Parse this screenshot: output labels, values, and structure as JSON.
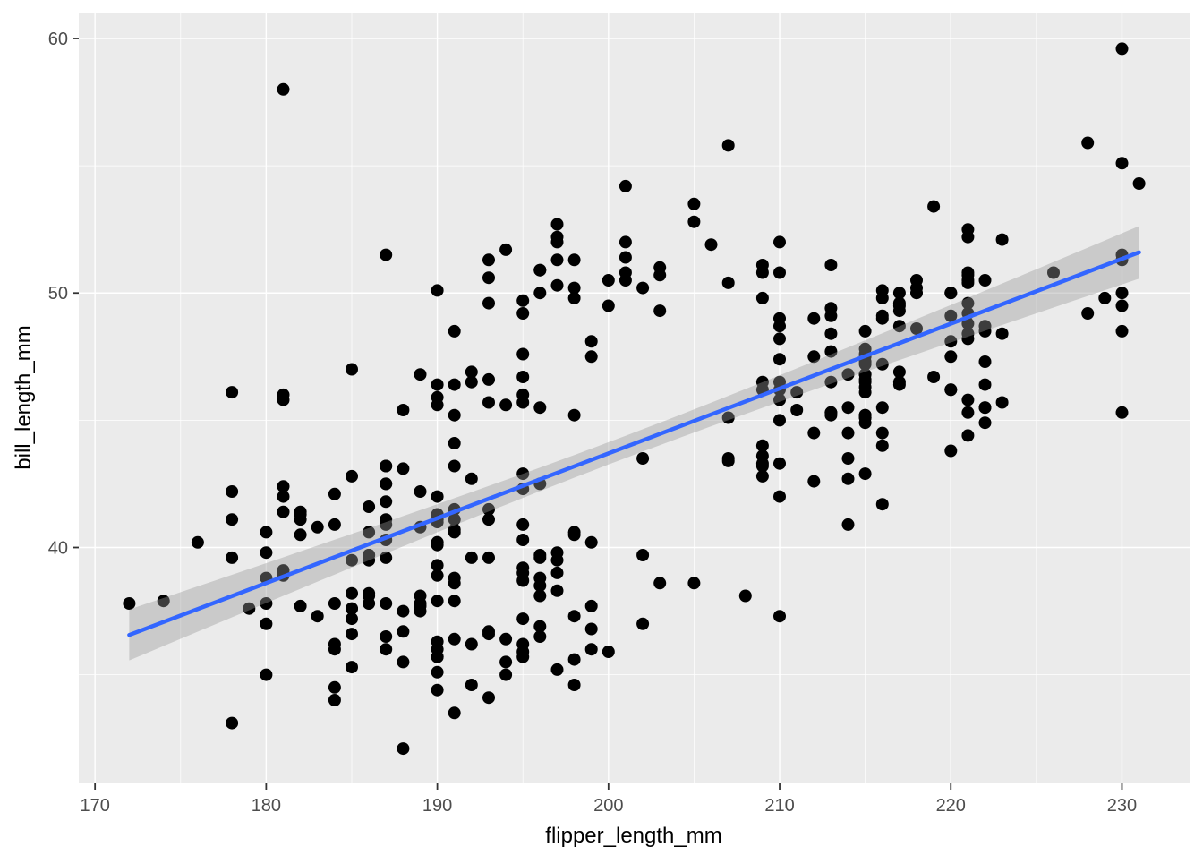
{
  "chart_data": {
    "type": "scatter",
    "title": "",
    "xlabel": "flipper_length_mm",
    "ylabel": "bill_length_mm",
    "legend": "none",
    "x_major_ticks": [
      170,
      180,
      190,
      200,
      210,
      220,
      230
    ],
    "x_minor_ticks": [
      175,
      185,
      195,
      205,
      215,
      225
    ],
    "y_major_ticks": [
      40,
      50,
      60
    ],
    "y_minor_ticks": [
      35,
      45,
      55
    ],
    "xlim": [
      169.05,
      233.95
    ],
    "ylim": [
      30.73,
      61.02
    ],
    "grid": {
      "major": true,
      "minor": true
    },
    "style": {
      "panel_bg": "#EBEBEB",
      "grid_color": "#FFFFFF",
      "point_color": "#000000",
      "line_color": "#3366FF",
      "ribbon_color": "#999999",
      "ribbon_alpha": 0.4,
      "tick_color": "#333333",
      "tick_label_color": "#4D4D4D",
      "axis_title_color": "#000000"
    },
    "smooth": {
      "method": "lm",
      "x_start": 172,
      "x_end": 231,
      "slope": 0.2548,
      "intercept": -7.262,
      "ci": {
        "mult": 8.077,
        "inv_n": 0.002924,
        "x_mean": 200.9,
        "sxx": 67415
      }
    },
    "points": [
      [
        181,
        39.1
      ],
      [
        186,
        39.5
      ],
      [
        195,
        40.3
      ],
      [
        193,
        36.7
      ],
      [
        190,
        39.3
      ],
      [
        181,
        38.9
      ],
      [
        195,
        39.2
      ],
      [
        193,
        34.1
      ],
      [
        190,
        42.0
      ],
      [
        186,
        37.8
      ],
      [
        180,
        37.8
      ],
      [
        182,
        41.1
      ],
      [
        191,
        38.6
      ],
      [
        198,
        34.6
      ],
      [
        185,
        36.6
      ],
      [
        195,
        38.7
      ],
      [
        196,
        42.5
      ],
      [
        190,
        34.4
      ],
      [
        181,
        46.0
      ],
      [
        184,
        37.8
      ],
      [
        182,
        37.7
      ],
      [
        195,
        35.9
      ],
      [
        186,
        38.2
      ],
      [
        196,
        38.8
      ],
      [
        185,
        35.3
      ],
      [
        180,
        40.6
      ],
      [
        182,
        40.5
      ],
      [
        191,
        37.9
      ],
      [
        198,
        40.5
      ],
      [
        185,
        39.5
      ],
      [
        195,
        37.2
      ],
      [
        197,
        39.5
      ],
      [
        184,
        40.9
      ],
      [
        194,
        36.4
      ],
      [
        174,
        37.9
      ],
      [
        180,
        38.8
      ],
      [
        189,
        42.2
      ],
      [
        185,
        37.6
      ],
      [
        180,
        39.8
      ],
      [
        187,
        36.5
      ],
      [
        183,
        40.8
      ],
      [
        187,
        36.0
      ],
      [
        172,
        37.8
      ],
      [
        180,
        37.0
      ],
      [
        178,
        39.6
      ],
      [
        178,
        41.1
      ],
      [
        188,
        37.5
      ],
      [
        184,
        36.0
      ],
      [
        195,
        42.3
      ],
      [
        196,
        39.6
      ],
      [
        190,
        40.1
      ],
      [
        180,
        35.0
      ],
      [
        181,
        42.0
      ],
      [
        184,
        34.5
      ],
      [
        182,
        41.4
      ],
      [
        195,
        39.0
      ],
      [
        186,
        40.6
      ],
      [
        196,
        36.5
      ],
      [
        185,
        37.6
      ],
      [
        190,
        35.7
      ],
      [
        182,
        41.3
      ],
      [
        179,
        37.6
      ],
      [
        190,
        41.1
      ],
      [
        191,
        36.4
      ],
      [
        186,
        41.6
      ],
      [
        188,
        35.5
      ],
      [
        190,
        41.1
      ],
      [
        200,
        35.9
      ],
      [
        187,
        41.8
      ],
      [
        191,
        33.5
      ],
      [
        186,
        39.7
      ],
      [
        193,
        39.6
      ],
      [
        181,
        45.8
      ],
      [
        194,
        35.5
      ],
      [
        185,
        42.8
      ],
      [
        195,
        40.9
      ],
      [
        185,
        37.2
      ],
      [
        192,
        36.2
      ],
      [
        184,
        42.1
      ],
      [
        192,
        34.6
      ],
      [
        195,
        42.9
      ],
      [
        188,
        36.7
      ],
      [
        190,
        35.1
      ],
      [
        198,
        37.3
      ],
      [
        190,
        41.3
      ],
      [
        190,
        36.3
      ],
      [
        196,
        36.9
      ],
      [
        197,
        38.3
      ],
      [
        190,
        38.9
      ],
      [
        195,
        35.7
      ],
      [
        191,
        41.1
      ],
      [
        184,
        34.0
      ],
      [
        187,
        39.6
      ],
      [
        195,
        36.2
      ],
      [
        189,
        40.8
      ],
      [
        196,
        38.1
      ],
      [
        187,
        40.3
      ],
      [
        178,
        33.1
      ],
      [
        191,
        43.2
      ],
      [
        194,
        35.0
      ],
      [
        190,
        41.0
      ],
      [
        189,
        37.7
      ],
      [
        189,
        37.8
      ],
      [
        190,
        37.9
      ],
      [
        202,
        39.7
      ],
      [
        205,
        38.6
      ],
      [
        185,
        38.2
      ],
      [
        186,
        38.1
      ],
      [
        187,
        43.2
      ],
      [
        208,
        38.1
      ],
      [
        190,
        45.6
      ],
      [
        196,
        39.7
      ],
      [
        178,
        42.2
      ],
      [
        192,
        39.6
      ],
      [
        192,
        42.7
      ],
      [
        203,
        38.6
      ],
      [
        183,
        37.3
      ],
      [
        190,
        35.7
      ],
      [
        193,
        41.1
      ],
      [
        184,
        36.2
      ],
      [
        199,
        37.7
      ],
      [
        190,
        40.2
      ],
      [
        181,
        41.4
      ],
      [
        197,
        35.2
      ],
      [
        198,
        40.6
      ],
      [
        191,
        38.8
      ],
      [
        193,
        41.5
      ],
      [
        197,
        39.0
      ],
      [
        191,
        44.1
      ],
      [
        196,
        38.5
      ],
      [
        188,
        43.1
      ],
      [
        199,
        36.8
      ],
      [
        189,
        37.5
      ],
      [
        189,
        38.1
      ],
      [
        187,
        41.1
      ],
      [
        198,
        35.6
      ],
      [
        176,
        40.2
      ],
      [
        202,
        37.0
      ],
      [
        186,
        39.7
      ],
      [
        199,
        40.2
      ],
      [
        191,
        40.6
      ],
      [
        188,
        32.1
      ],
      [
        191,
        40.7
      ],
      [
        210,
        37.3
      ],
      [
        190,
        40.2
      ],
      [
        197,
        39.8
      ],
      [
        193,
        36.6
      ],
      [
        199,
        36.0
      ],
      [
        187,
        37.8
      ],
      [
        190,
        36.0
      ],
      [
        191,
        41.5
      ],
      [
        192,
        46.5
      ],
      [
        196,
        50.0
      ],
      [
        193,
        51.3
      ],
      [
        188,
        45.4
      ],
      [
        197,
        52.7
      ],
      [
        198,
        45.2
      ],
      [
        178,
        46.1
      ],
      [
        197,
        51.3
      ],
      [
        195,
        46.0
      ],
      [
        198,
        51.3
      ],
      [
        193,
        46.6
      ],
      [
        194,
        51.7
      ],
      [
        185,
        47.0
      ],
      [
        201,
        52.0
      ],
      [
        190,
        45.9
      ],
      [
        201,
        50.5
      ],
      [
        197,
        50.3
      ],
      [
        181,
        58.0
      ],
      [
        190,
        46.4
      ],
      [
        195,
        49.2
      ],
      [
        181,
        42.4
      ],
      [
        191,
        48.5
      ],
      [
        187,
        43.2
      ],
      [
        193,
        50.6
      ],
      [
        195,
        46.7
      ],
      [
        197,
        52.0
      ],
      [
        200,
        50.5
      ],
      [
        200,
        49.5
      ],
      [
        191,
        46.4
      ],
      [
        205,
        52.8
      ],
      [
        187,
        40.9
      ],
      [
        201,
        54.2
      ],
      [
        187,
        42.5
      ],
      [
        203,
        51.0
      ],
      [
        195,
        49.7
      ],
      [
        199,
        47.5
      ],
      [
        195,
        47.6
      ],
      [
        210,
        52.0
      ],
      [
        192,
        46.9
      ],
      [
        205,
        53.5
      ],
      [
        210,
        49.0
      ],
      [
        210,
        46.2
      ],
      [
        196,
        50.9
      ],
      [
        196,
        45.5
      ],
      [
        196,
        50.9
      ],
      [
        201,
        50.8
      ],
      [
        190,
        50.1
      ],
      [
        212,
        49.0
      ],
      [
        187,
        51.5
      ],
      [
        198,
        49.8
      ],
      [
        199,
        48.1
      ],
      [
        201,
        51.4
      ],
      [
        193,
        45.7
      ],
      [
        203,
        50.7
      ],
      [
        187,
        42.5
      ],
      [
        197,
        52.2
      ],
      [
        191,
        45.2
      ],
      [
        203,
        49.3
      ],
      [
        202,
        50.2
      ],
      [
        194,
        45.6
      ],
      [
        206,
        51.9
      ],
      [
        189,
        46.8
      ],
      [
        195,
        45.7
      ],
      [
        207,
        55.8
      ],
      [
        202,
        43.5
      ],
      [
        193,
        49.6
      ],
      [
        210,
        50.8
      ],
      [
        198,
        50.2
      ],
      [
        211,
        46.1
      ],
      [
        230,
        50.0
      ],
      [
        210,
        48.7
      ],
      [
        218,
        50.0
      ],
      [
        215,
        47.6
      ],
      [
        210,
        46.5
      ],
      [
        211,
        45.4
      ],
      [
        219,
        46.7
      ],
      [
        209,
        43.3
      ],
      [
        215,
        46.8
      ],
      [
        214,
        40.9
      ],
      [
        216,
        49.0
      ],
      [
        214,
        45.5
      ],
      [
        213,
        48.4
      ],
      [
        210,
        45.8
      ],
      [
        217,
        49.3
      ],
      [
        210,
        42.0
      ],
      [
        221,
        49.2
      ],
      [
        209,
        46.2
      ],
      [
        222,
        48.7
      ],
      [
        218,
        50.2
      ],
      [
        215,
        45.1
      ],
      [
        213,
        46.5
      ],
      [
        215,
        46.3
      ],
      [
        215,
        42.9
      ],
      [
        215,
        46.1
      ],
      [
        216,
        44.5
      ],
      [
        215,
        47.8
      ],
      [
        210,
        48.2
      ],
      [
        220,
        50.0
      ],
      [
        222,
        47.3
      ],
      [
        209,
        42.8
      ],
      [
        207,
        45.1
      ],
      [
        230,
        59.6
      ],
      [
        220,
        49.1
      ],
      [
        223,
        48.4
      ],
      [
        212,
        42.6
      ],
      [
        221,
        44.4
      ],
      [
        216,
        44.0
      ],
      [
        217,
        48.7
      ],
      [
        214,
        42.7
      ],
      [
        221,
        49.6
      ],
      [
        213,
        45.3
      ],
      [
        217,
        49.6
      ],
      [
        221,
        50.5
      ],
      [
        209,
        43.6
      ],
      [
        222,
        45.5
      ],
      [
        218,
        50.5
      ],
      [
        215,
        44.9
      ],
      [
        213,
        45.2
      ],
      [
        215,
        46.6
      ],
      [
        215,
        48.5
      ],
      [
        215,
        45.1
      ],
      [
        216,
        50.1
      ],
      [
        215,
        46.5
      ],
      [
        210,
        45.0
      ],
      [
        220,
        43.8
      ],
      [
        222,
        45.5
      ],
      [
        209,
        43.2
      ],
      [
        207,
        50.4
      ],
      [
        230,
        45.3
      ],
      [
        220,
        46.2
      ],
      [
        223,
        45.7
      ],
      [
        231,
        54.3
      ],
      [
        221,
        45.8
      ],
      [
        216,
        49.8
      ],
      [
        217,
        46.5
      ],
      [
        214,
        43.5
      ],
      [
        221,
        50.7
      ],
      [
        213,
        47.7
      ],
      [
        217,
        46.4
      ],
      [
        221,
        48.2
      ],
      [
        209,
        46.5
      ],
      [
        222,
        46.4
      ],
      [
        218,
        48.6
      ],
      [
        215,
        47.5
      ],
      [
        213,
        51.1
      ],
      [
        215,
        45.2
      ],
      [
        215,
        45.2
      ],
      [
        216,
        49.1
      ],
      [
        221,
        52.5
      ],
      [
        210,
        47.4
      ],
      [
        220,
        50.0
      ],
      [
        222,
        44.9
      ],
      [
        209,
        50.8
      ],
      [
        207,
        43.4
      ],
      [
        230,
        51.3
      ],
      [
        220,
        47.5
      ],
      [
        223,
        52.1
      ],
      [
        212,
        47.5
      ],
      [
        221,
        52.2
      ],
      [
        216,
        45.5
      ],
      [
        217,
        49.5
      ],
      [
        214,
        44.5
      ],
      [
        221,
        50.8
      ],
      [
        213,
        49.4
      ],
      [
        217,
        46.9
      ],
      [
        221,
        48.4
      ],
      [
        209,
        51.1
      ],
      [
        222,
        48.5
      ],
      [
        228,
        55.9
      ],
      [
        215,
        47.2
      ],
      [
        213,
        49.1
      ],
      [
        215,
        47.3
      ],
      [
        215,
        46.8
      ],
      [
        216,
        41.7
      ],
      [
        219,
        53.4
      ],
      [
        210,
        43.3
      ],
      [
        220,
        48.1
      ],
      [
        222,
        50.5
      ],
      [
        209,
        49.8
      ],
      [
        207,
        43.5
      ],
      [
        230,
        51.5
      ],
      [
        220,
        46.2
      ],
      [
        230,
        55.1
      ],
      [
        212,
        44.5
      ],
      [
        221,
        48.8
      ],
      [
        216,
        47.2
      ],
      [
        214,
        46.8
      ],
      [
        221,
        50.4
      ],
      [
        213,
        45.3
      ],
      [
        217,
        50.0
      ],
      [
        221,
        45.3
      ],
      [
        209,
        44.0
      ],
      [
        229,
        49.8
      ],
      [
        230,
        49.5
      ],
      [
        228,
        49.2
      ],
      [
        230,
        48.5
      ],
      [
        226,
        50.8
      ]
    ]
  }
}
